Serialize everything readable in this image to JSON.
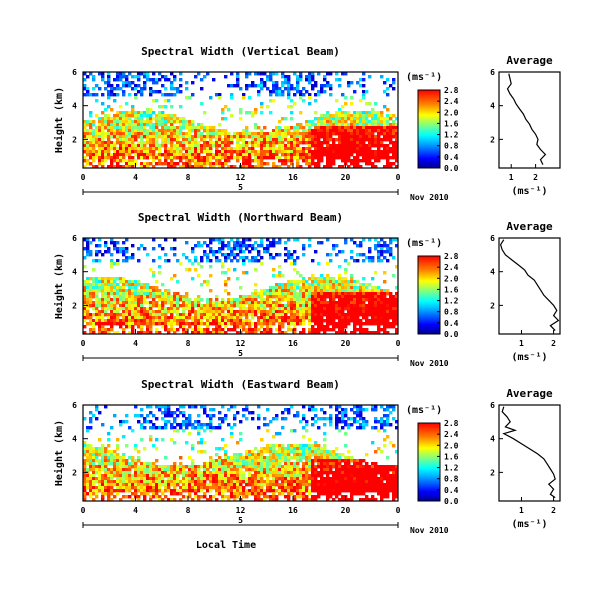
{
  "figure": {
    "xlabel": "Local Time",
    "date_label": "Nov 2010",
    "day_marker": "5",
    "colorbar_unit": "(ms⁻¹)",
    "profile_title": "Average",
    "profile_xlabel": "(ms⁻¹)",
    "ylabel": "Height (km)"
  },
  "chart_data": [
    {
      "type": "heatmap",
      "title": "Spectral Width (Vertical Beam)",
      "xlabel": "Local Time",
      "ylabel": "Height (km)",
      "x_ticks": [
        "0",
        "4",
        "8",
        "12",
        "16",
        "20",
        "0"
      ],
      "y_ticks": [
        "6",
        "4",
        "2"
      ],
      "xlim": [
        0,
        24
      ],
      "ylim": [
        0.3,
        6
      ],
      "colorbar": {
        "ticks": [
          "0.0",
          "0.4",
          "0.8",
          "1.2",
          "1.6",
          "2.0",
          "2.4",
          "2.8"
        ],
        "range": [
          0,
          2.8
        ],
        "unit": "(ms⁻¹)"
      },
      "profile": {
        "title": "Average",
        "xlabel": "(ms⁻¹)",
        "x_ticks": [
          "1",
          "2"
        ],
        "y_ticks": [
          "6",
          "4",
          "2"
        ],
        "xlim": [
          0.5,
          3.0
        ],
        "ylim": [
          0.3,
          6
        ],
        "height": [
          5.9,
          5.6,
          5.3,
          5.0,
          4.7,
          4.4,
          4.1,
          3.8,
          3.5,
          3.2,
          2.9,
          2.6,
          2.3,
          2.0,
          1.7,
          1.4,
          1.1,
          0.8,
          0.5
        ],
        "width": [
          0.9,
          0.95,
          1.0,
          0.85,
          0.95,
          1.1,
          1.2,
          1.35,
          1.5,
          1.6,
          1.75,
          1.85,
          2.0,
          2.1,
          2.05,
          2.2,
          2.4,
          2.2,
          2.3
        ]
      }
    },
    {
      "type": "heatmap",
      "title": "Spectral Width (Northward Beam)",
      "xlabel": "Local Time",
      "ylabel": "Height (km)",
      "x_ticks": [
        "0",
        "4",
        "8",
        "12",
        "16",
        "20",
        "0"
      ],
      "y_ticks": [
        "6",
        "4",
        "2"
      ],
      "xlim": [
        0,
        24
      ],
      "ylim": [
        0.3,
        6
      ],
      "colorbar": {
        "ticks": [
          "0.0",
          "0.4",
          "0.8",
          "1.2",
          "1.6",
          "2.0",
          "2.4",
          "2.8"
        ],
        "range": [
          0,
          2.8
        ],
        "unit": "(ms⁻¹)"
      },
      "profile": {
        "title": "Average",
        "xlabel": "(ms⁻¹)",
        "x_ticks": [
          "1",
          "2"
        ],
        "y_ticks": [
          "6",
          "4",
          "2"
        ],
        "xlim": [
          0.3,
          2.2
        ],
        "ylim": [
          0.3,
          6
        ],
        "height": [
          5.9,
          5.6,
          5.3,
          5.0,
          4.7,
          4.4,
          4.1,
          3.8,
          3.5,
          3.2,
          2.9,
          2.6,
          2.3,
          2.0,
          1.7,
          1.4,
          1.1,
          0.8,
          0.5
        ],
        "width": [
          0.45,
          0.35,
          0.4,
          0.5,
          0.7,
          0.9,
          1.1,
          1.2,
          1.4,
          1.5,
          1.6,
          1.7,
          1.85,
          2.0,
          2.1,
          2.0,
          2.15,
          1.9,
          2.05
        ]
      }
    },
    {
      "type": "heatmap",
      "title": "Spectral Width (Eastward Beam)",
      "xlabel": "Local Time",
      "ylabel": "Height (km)",
      "x_ticks": [
        "0",
        "4",
        "8",
        "12",
        "16",
        "20",
        "0"
      ],
      "y_ticks": [
        "6",
        "4",
        "2"
      ],
      "xlim": [
        0,
        24
      ],
      "ylim": [
        0.3,
        6
      ],
      "colorbar": {
        "ticks": [
          "0.0",
          "0.4",
          "0.8",
          "1.2",
          "1.6",
          "2.0",
          "2.4",
          "2.8"
        ],
        "range": [
          0,
          2.8
        ],
        "unit": "(ms⁻¹)"
      },
      "profile": {
        "title": "Average",
        "xlabel": "(ms⁻¹)",
        "x_ticks": [
          "1",
          "2"
        ],
        "y_ticks": [
          "6",
          "4",
          "2"
        ],
        "xlim": [
          0.3,
          2.2
        ],
        "ylim": [
          0.3,
          6
        ],
        "height": [
          5.9,
          5.6,
          5.3,
          5.0,
          4.7,
          4.5,
          4.3,
          4.0,
          3.7,
          3.4,
          3.1,
          2.8,
          2.5,
          2.2,
          1.9,
          1.6,
          1.3,
          1.0,
          0.7,
          0.5
        ],
        "width": [
          0.45,
          0.4,
          0.55,
          0.65,
          0.5,
          0.8,
          0.45,
          0.75,
          1.0,
          1.25,
          1.5,
          1.7,
          1.8,
          1.9,
          2.0,
          2.05,
          1.85,
          2.0,
          1.9,
          2.05
        ]
      }
    }
  ]
}
